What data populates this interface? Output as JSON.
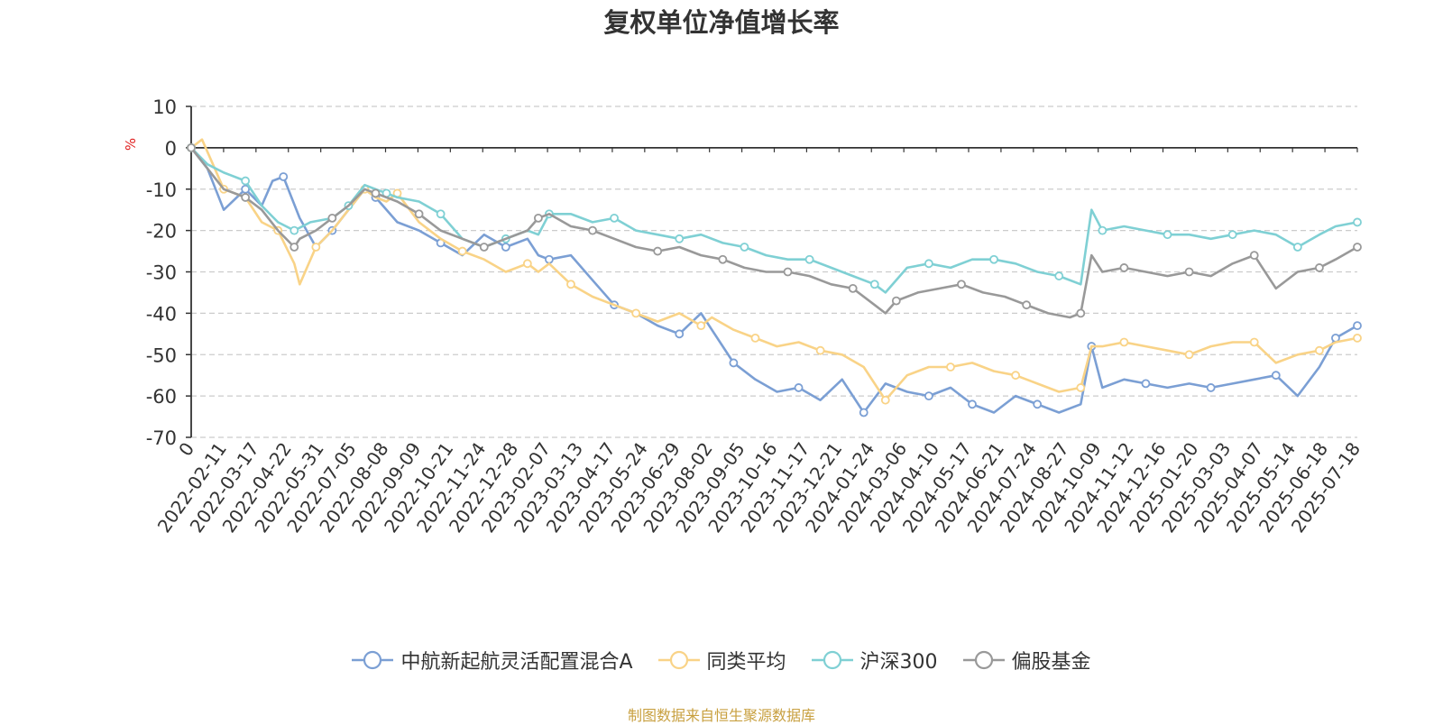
{
  "chart_data": {
    "type": "line",
    "title": "复权单位净值增长率",
    "ylabel": "%",
    "ylim": [
      -70,
      10
    ],
    "yticks": [
      "10",
      "0",
      "-10",
      "-20",
      "-30",
      "-40",
      "-50",
      "-60",
      "-70"
    ],
    "xlim": [
      0,
      2150
    ],
    "x_origin_label": "0",
    "xtick_labels": [
      "2022-02-11",
      "2022-03-17",
      "2022-04-22",
      "2022-05-31",
      "2022-07-05",
      "2022-08-08",
      "2022-09-09",
      "2022-10-21",
      "2022-11-24",
      "2022-12-28",
      "2023-02-07",
      "2023-03-13",
      "2023-04-17",
      "2023-05-24",
      "2023-06-29",
      "2023-08-02",
      "2023-09-05",
      "2023-10-16",
      "2023-11-17",
      "2023-12-21",
      "2024-01-24",
      "2024-03-06",
      "2024-04-10",
      "2024-05-17",
      "2024-06-21",
      "2024-07-24",
      "2024-08-27",
      "2024-10-09",
      "2024-11-12",
      "2024-12-16",
      "2025-01-20",
      "2025-03-03",
      "2025-04-07",
      "2025-05-14",
      "2025-06-18",
      "2025-07-18"
    ],
    "grid": true,
    "legend_position": "bottom",
    "series": [
      {
        "name": "中航新起航灵活配置混合A",
        "color": "#7b9fd4",
        "x": [
          0,
          30,
          60,
          100,
          130,
          150,
          170,
          200,
          230,
          260,
          290,
          320,
          340,
          380,
          420,
          460,
          500,
          540,
          580,
          620,
          640,
          660,
          700,
          740,
          780,
          820,
          860,
          900,
          940,
          960,
          1000,
          1040,
          1080,
          1120,
          1160,
          1200,
          1240,
          1280,
          1320,
          1360,
          1400,
          1420,
          1440,
          1480,
          1520,
          1560,
          1600,
          1640,
          1660,
          1680,
          1720,
          1760,
          1800,
          1840,
          1880,
          1920,
          1960,
          2000,
          2040,
          2080,
          2110,
          2150
        ],
        "values": [
          0,
          -5,
          -15,
          -10,
          -14,
          -8,
          -7,
          -17,
          -24,
          -20,
          -15,
          -10,
          -12,
          -18,
          -20,
          -23,
          -26,
          -21,
          -24,
          -22,
          -26,
          -27,
          -26,
          -32,
          -38,
          -40,
          -43,
          -45,
          -40,
          -44,
          -52,
          -56,
          -59,
          -58,
          -61,
          -56,
          -64,
          -57,
          -59,
          -60,
          -58,
          -60,
          -62,
          -64,
          -60,
          -62,
          -64,
          -62,
          -48,
          -58,
          -56,
          -57,
          -58,
          -57,
          -58,
          -57,
          -56,
          -55,
          -60,
          -53,
          -46,
          -43
        ]
      },
      {
        "name": "同类平均",
        "color": "#f9d387",
        "x": [
          0,
          20,
          40,
          60,
          100,
          130,
          160,
          190,
          200,
          230,
          260,
          290,
          320,
          340,
          360,
          380,
          420,
          460,
          500,
          540,
          580,
          620,
          640,
          660,
          700,
          740,
          780,
          820,
          860,
          900,
          940,
          960,
          1000,
          1040,
          1080,
          1120,
          1160,
          1200,
          1240,
          1280,
          1320,
          1360,
          1400,
          1440,
          1480,
          1520,
          1560,
          1600,
          1640,
          1660,
          1680,
          1720,
          1760,
          1800,
          1840,
          1880,
          1920,
          1960,
          2000,
          2040,
          2080,
          2110,
          2150
        ],
        "values": [
          0,
          2,
          -4,
          -10,
          -12,
          -18,
          -20,
          -28,
          -33,
          -24,
          -20,
          -15,
          -10,
          -12,
          -13,
          -11,
          -18,
          -22,
          -25,
          -27,
          -30,
          -28,
          -30,
          -28,
          -33,
          -36,
          -38,
          -40,
          -42,
          -40,
          -43,
          -41,
          -44,
          -46,
          -48,
          -47,
          -49,
          -50,
          -53,
          -61,
          -55,
          -53,
          -53,
          -52,
          -54,
          -55,
          -57,
          -59,
          -58,
          -48,
          -48,
          -47,
          -48,
          -49,
          -50,
          -48,
          -47,
          -47,
          -52,
          -50,
          -49,
          -47,
          -46
        ]
      },
      {
        "name": "沪深300",
        "color": "#7fd0d4",
        "x": [
          0,
          30,
          60,
          100,
          130,
          160,
          190,
          220,
          260,
          290,
          320,
          340,
          360,
          380,
          420,
          460,
          500,
          540,
          580,
          620,
          640,
          660,
          700,
          740,
          780,
          820,
          860,
          900,
          940,
          980,
          1020,
          1060,
          1100,
          1140,
          1180,
          1220,
          1260,
          1280,
          1320,
          1360,
          1400,
          1440,
          1480,
          1520,
          1560,
          1600,
          1640,
          1660,
          1680,
          1720,
          1760,
          1800,
          1840,
          1880,
          1920,
          1960,
          2000,
          2040,
          2080,
          2110,
          2150
        ],
        "values": [
          0,
          -4,
          -6,
          -8,
          -14,
          -18,
          -20,
          -18,
          -17,
          -14,
          -9,
          -10,
          -11,
          -12,
          -13,
          -16,
          -22,
          -24,
          -22,
          -20,
          -21,
          -16,
          -16,
          -18,
          -17,
          -20,
          -21,
          -22,
          -21,
          -23,
          -24,
          -26,
          -27,
          -27,
          -29,
          -31,
          -33,
          -35,
          -29,
          -28,
          -29,
          -27,
          -27,
          -28,
          -30,
          -31,
          -33,
          -15,
          -20,
          -19,
          -20,
          -21,
          -21,
          -22,
          -21,
          -20,
          -21,
          -24,
          -21,
          -19,
          -18
        ]
      },
      {
        "name": "偏股基金",
        "color": "#999999",
        "x": [
          0,
          30,
          60,
          100,
          130,
          160,
          190,
          200,
          230,
          260,
          290,
          320,
          340,
          360,
          380,
          420,
          460,
          500,
          540,
          580,
          620,
          640,
          660,
          700,
          740,
          780,
          820,
          860,
          900,
          940,
          980,
          1020,
          1060,
          1100,
          1140,
          1180,
          1220,
          1260,
          1280,
          1300,
          1340,
          1380,
          1420,
          1460,
          1500,
          1540,
          1580,
          1620,
          1640,
          1660,
          1680,
          1720,
          1760,
          1800,
          1840,
          1880,
          1920,
          1960,
          2000,
          2040,
          2080,
          2110,
          2150
        ],
        "values": [
          0,
          -5,
          -10,
          -12,
          -15,
          -20,
          -24,
          -22,
          -20,
          -17,
          -14,
          -10,
          -11,
          -12,
          -13,
          -16,
          -20,
          -22,
          -24,
          -22,
          -20,
          -17,
          -16,
          -19,
          -20,
          -22,
          -24,
          -25,
          -24,
          -26,
          -27,
          -29,
          -30,
          -30,
          -31,
          -33,
          -34,
          -38,
          -40,
          -37,
          -35,
          -34,
          -33,
          -35,
          -36,
          -38,
          -40,
          -41,
          -40,
          -26,
          -30,
          -29,
          -30,
          -31,
          -30,
          -31,
          -28,
          -26,
          -34,
          -30,
          -29,
          -27,
          -24
        ]
      }
    ]
  },
  "source_note": "制图数据来自恒生聚源数据库"
}
